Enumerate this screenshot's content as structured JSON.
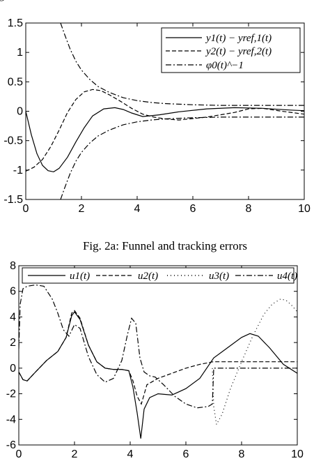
{
  "header_fragment": "g",
  "caption_top": "Fig. 2a: Funnel and tracking errors",
  "chart_data": [
    {
      "type": "line",
      "xlim": [
        0,
        10
      ],
      "ylim": [
        -1.5,
        1.5
      ],
      "xticks": [
        "0",
        "2",
        "4",
        "6",
        "8",
        "10"
      ],
      "yticks": [
        "1.5",
        "1",
        "0.5",
        "0",
        "-0.5",
        "-1",
        "-1.5"
      ],
      "legend_position": "top-right",
      "series": [
        {
          "name": "y1(t) − yref,1(t)",
          "style": "solid",
          "x": [
            0,
            0.2,
            0.4,
            0.6,
            0.8,
            1.0,
            1.2,
            1.5,
            1.8,
            2.1,
            2.4,
            2.8,
            3.2,
            3.5,
            3.8,
            4.2,
            4.8,
            5.5,
            6.5,
            7.5,
            8.5,
            9.5,
            10
          ],
          "y": [
            0,
            -0.4,
            -0.72,
            -0.92,
            -1.01,
            -1.03,
            -0.97,
            -0.78,
            -0.52,
            -0.28,
            -0.08,
            0.04,
            0.06,
            0.03,
            -0.03,
            -0.09,
            -0.06,
            -0.01,
            0.04,
            0.06,
            0.05,
            0.02,
            0.01
          ]
        },
        {
          "name": "y2(t) − yref,2(t)",
          "style": "dashed",
          "x": [
            0,
            0.3,
            0.6,
            0.9,
            1.2,
            1.5,
            1.8,
            2.1,
            2.4,
            2.7,
            3.0,
            3.4,
            3.8,
            4.2,
            4.6,
            5.0,
            5.5,
            6.5,
            7.5,
            8.0,
            8.5,
            9.2,
            10
          ],
          "y": [
            -1.02,
            -0.95,
            -0.82,
            -0.6,
            -0.32,
            -0.02,
            0.2,
            0.33,
            0.37,
            0.35,
            0.28,
            0.17,
            0.05,
            -0.05,
            -0.1,
            -0.13,
            -0.15,
            -0.1,
            -0.02,
            0.04,
            0.05,
            0.0,
            -0.05
          ]
        },
        {
          "name": "φ0(t)^−1",
          "style": "dash-dot",
          "x": [
            1.25,
            1.4,
            1.6,
            1.8,
            2.0,
            2.3,
            2.6,
            3.0,
            3.5,
            4.0,
            4.5,
            5.0,
            6.0,
            7.0,
            8.0,
            9.0,
            10
          ],
          "y": [
            1.5,
            1.3,
            1.05,
            0.85,
            0.7,
            0.54,
            0.42,
            0.32,
            0.23,
            0.18,
            0.15,
            0.13,
            0.11,
            0.1,
            0.1,
            0.1,
            0.1
          ]
        }
      ]
    },
    {
      "type": "line",
      "xlim": [
        0,
        10
      ],
      "ylim": [
        -6,
        8
      ],
      "xticks": [
        "0",
        "2",
        "4",
        "6",
        "8",
        "10"
      ],
      "yticks": [
        "8",
        "6",
        "4",
        "2",
        "0",
        "-2",
        "-4",
        "-6"
      ],
      "legend_position": "top",
      "series": [
        {
          "name": "u1(t)",
          "style": "solid",
          "x": [
            0,
            0.15,
            0.3,
            0.6,
            1.0,
            1.4,
            1.7,
            1.9,
            2.0,
            2.2,
            2.5,
            2.8,
            3.1,
            3.4,
            3.7,
            3.95,
            4.1,
            4.25,
            4.38,
            4.5,
            4.7,
            5.0,
            5.5,
            6.0,
            6.5,
            7.0,
            7.5,
            8.0,
            8.3,
            8.6,
            9.0,
            9.5,
            10.0
          ],
          "y": [
            -0.3,
            -0.9,
            -1.0,
            -0.3,
            0.6,
            1.3,
            2.4,
            4.1,
            4.4,
            3.8,
            1.8,
            0.5,
            0.0,
            -0.1,
            -0.1,
            -0.2,
            -1.5,
            -3.5,
            -5.5,
            -3.2,
            -2.3,
            -2.0,
            -2.1,
            -1.6,
            -0.8,
            0.8,
            1.6,
            2.4,
            2.7,
            2.5,
            1.6,
            0.3,
            -0.4
          ]
        },
        {
          "name": "u2(t)",
          "style": "dashed",
          "x": [
            0,
            0.15,
            0.3,
            0.6,
            1.0,
            1.4,
            1.7,
            1.9,
            2.0,
            2.2,
            2.5,
            2.8,
            3.1,
            3.4,
            3.7,
            3.95,
            4.1,
            4.25,
            4.4,
            4.6,
            5.0,
            5.5,
            6.0,
            6.5,
            6.98,
            7.0,
            8.0,
            9.0,
            10.0
          ],
          "y": [
            -0.3,
            -0.9,
            -1.0,
            -0.3,
            0.6,
            1.3,
            2.4,
            4.3,
            4.5,
            3.9,
            1.8,
            0.5,
            0.0,
            -0.1,
            -0.1,
            -0.2,
            -1.0,
            -2.2,
            -2.8,
            -1.3,
            -0.8,
            -0.4,
            0.0,
            0.3,
            0.5,
            0.5,
            0.5,
            0.5,
            0.5
          ]
        },
        {
          "name": "u3(t)",
          "style": "dotted",
          "x": [
            6.95,
            7.0,
            7.1,
            7.3,
            7.6,
            8.0,
            8.4,
            8.8,
            9.1,
            9.4,
            9.6,
            9.8,
            10.0
          ],
          "y": [
            0.0,
            -3.0,
            -4.4,
            -3.6,
            -1.6,
            0.5,
            2.5,
            4.2,
            5.0,
            5.4,
            5.3,
            4.9,
            4.4
          ]
        },
        {
          "name": "u4(t)",
          "style": "dash-dot",
          "x": [
            0,
            0.05,
            0.15,
            0.3,
            0.6,
            0.9,
            1.2,
            1.4,
            1.6,
            1.8,
            2.0,
            2.2,
            2.5,
            2.8,
            3.1,
            3.4,
            3.7,
            3.9,
            4.05,
            4.2,
            4.35,
            4.5,
            4.7,
            4.9,
            5.2,
            5.6,
            6.0,
            6.4,
            6.8,
            6.95,
            7.0,
            8.0,
            9.0,
            10.0
          ],
          "y": [
            1.5,
            5.0,
            6.2,
            6.4,
            6.5,
            6.4,
            5.4,
            4.3,
            3.0,
            2.5,
            3.4,
            3.1,
            0.9,
            -0.5,
            -1.1,
            -0.8,
            0.6,
            2.6,
            3.9,
            3.5,
            0.8,
            -0.3,
            -0.6,
            -0.7,
            -1.3,
            -2.2,
            -2.8,
            -3.1,
            -3.0,
            -2.8,
            0.0,
            0.0,
            0.0,
            0.0
          ]
        }
      ]
    }
  ]
}
